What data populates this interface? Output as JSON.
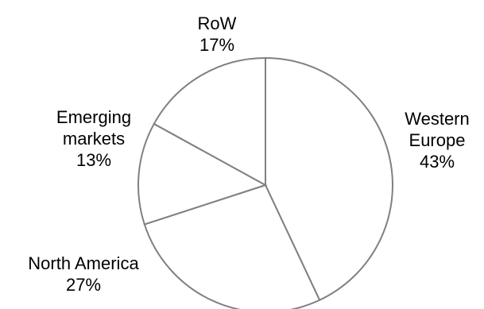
{
  "chart_data": {
    "type": "pie",
    "title": "",
    "slices": [
      {
        "label": [
          "Western",
          "Europe"
        ],
        "value": 43,
        "value_label": "43%"
      },
      {
        "label": [
          "North America"
        ],
        "value": 27,
        "value_label": "27%"
      },
      {
        "label": [
          "Emerging",
          "markets"
        ],
        "value": 13,
        "value_label": "13%"
      },
      {
        "label": [
          "RoW"
        ],
        "value": 17,
        "value_label": "17%"
      }
    ],
    "start_angle_deg": 0,
    "direction": "clockwise",
    "slice_fill": "#ffffff",
    "slice_stroke": "#808080",
    "legend": "none"
  }
}
